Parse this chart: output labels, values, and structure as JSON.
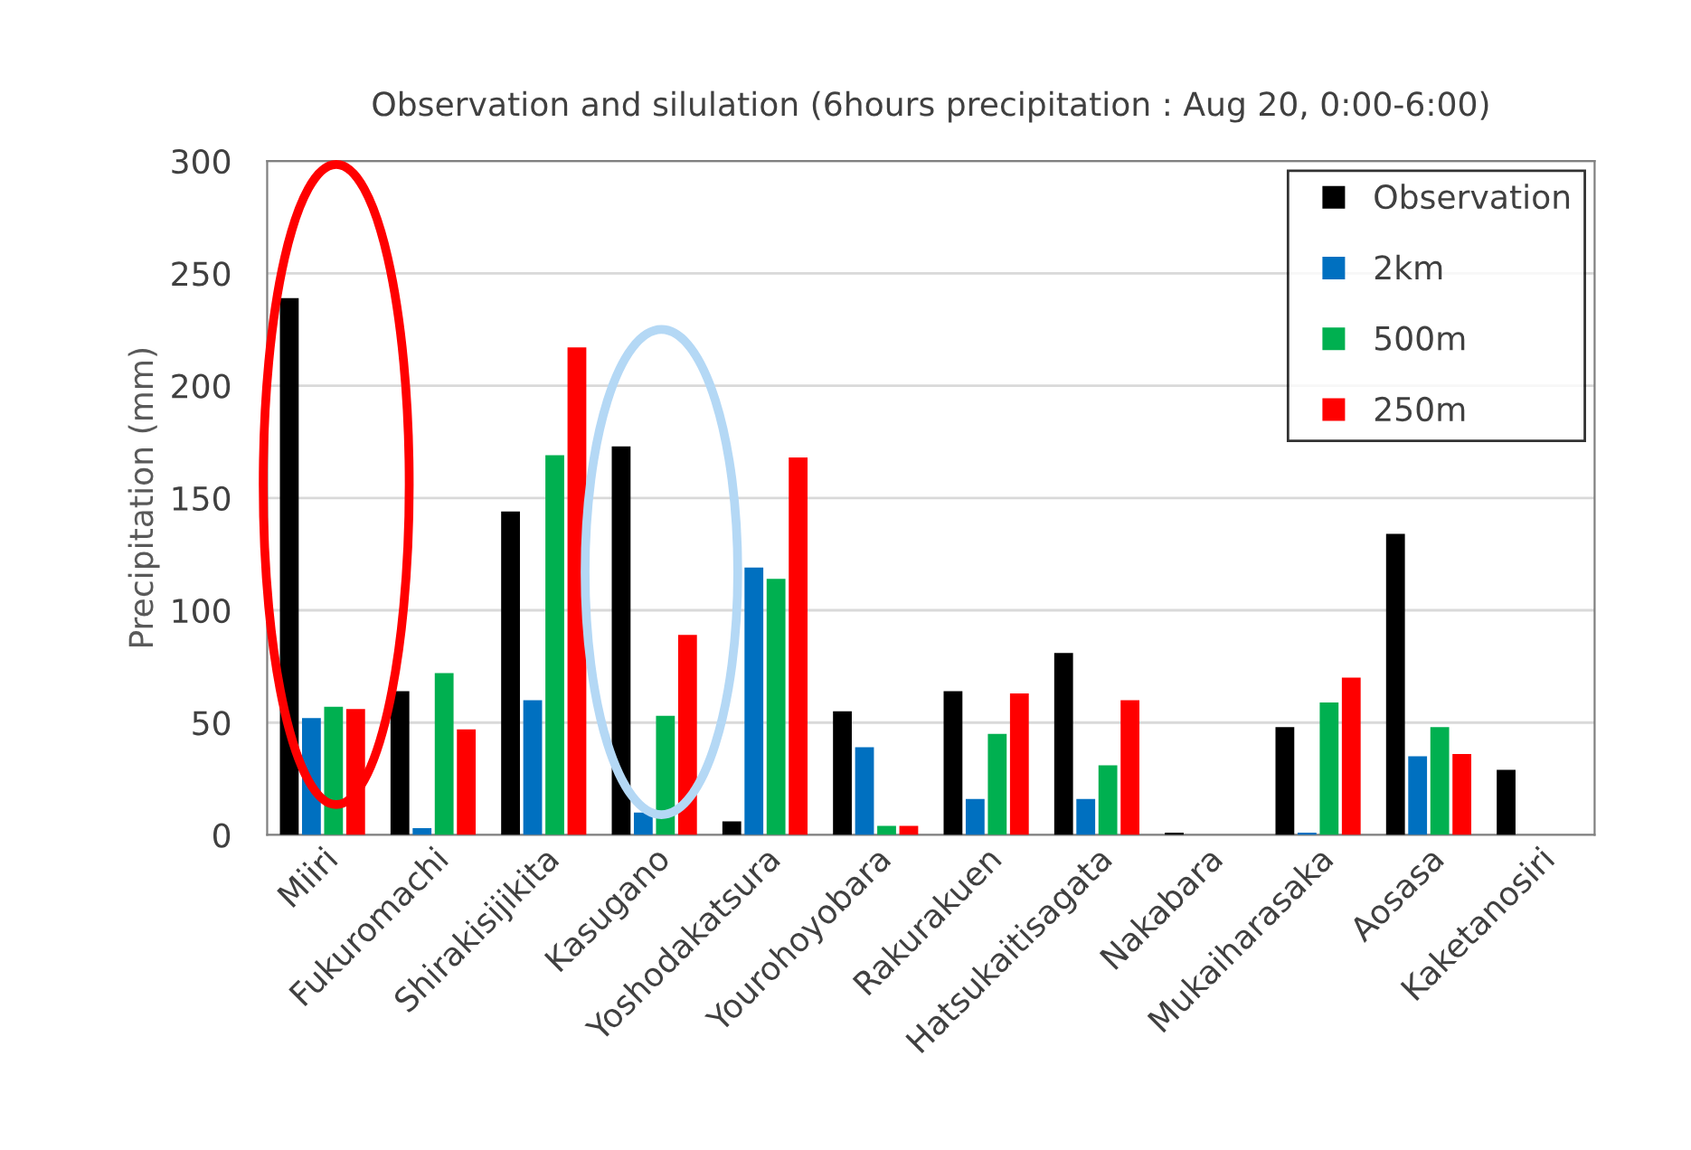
{
  "chart_data": {
    "type": "bar",
    "title": "Observation and silulation (6hours precipitation : Aug 20, 0:00-6:00)",
    "ylabel": "Precipitation (mm)",
    "categories": [
      "Miiri",
      "Fukuromachi",
      "Shirakisijikita",
      "Kasugano",
      "Yoshodakatsura",
      "Yourohoyobara",
      "Rakurakuen",
      "Hatsukaitisagata",
      "Nakabara",
      "Mukaiharasaka",
      "Aosasa",
      "Kaketanosiri"
    ],
    "series": [
      {
        "name": "Observation",
        "color": "#000000",
        "values": [
          239,
          64,
          144,
          173,
          6,
          55,
          64,
          81,
          1,
          48,
          134,
          29
        ]
      },
      {
        "name": "2km",
        "color": "#0070c0",
        "values": [
          52,
          3,
          60,
          10,
          119,
          39,
          16,
          16,
          0,
          1,
          35,
          0
        ]
      },
      {
        "name": "500m",
        "color": "#00b050",
        "values": [
          57,
          72,
          169,
          53,
          114,
          4,
          45,
          31,
          0,
          59,
          48,
          0
        ]
      },
      {
        "name": "250m",
        "color": "#ff0000",
        "values": [
          56,
          47,
          217,
          89,
          168,
          4,
          63,
          60,
          0,
          70,
          36,
          0
        ]
      }
    ],
    "ylim": [
      0,
      300
    ],
    "yticks": [
      0,
      50,
      100,
      150,
      200,
      250,
      300
    ],
    "grid": "y",
    "legend": "top right"
  }
}
